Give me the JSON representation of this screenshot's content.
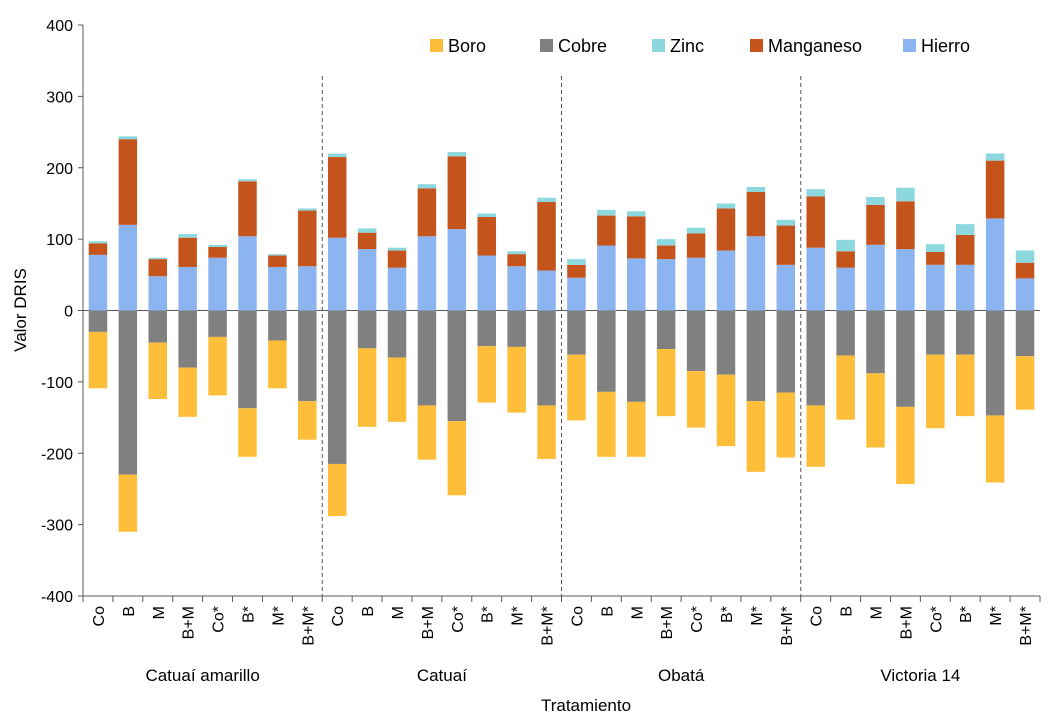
{
  "chart_data": {
    "type": "bar",
    "stacked": true,
    "xlabel": "Tratamiento",
    "ylabel": "Valor DRIS",
    "ylim": [
      -400,
      400
    ],
    "yticks": [
      -400,
      -300,
      -200,
      -100,
      0,
      100,
      200,
      300,
      400
    ],
    "grid": false,
    "legend_position": "top-right",
    "legend_order": [
      "Boro",
      "Cobre",
      "Zinc",
      "Manganeso",
      "Hierro"
    ],
    "groups": [
      "Catuaí amarillo",
      "Catuaí",
      "Obatá",
      "Victoria 14"
    ],
    "group_categories": [
      "Co",
      "B",
      "M",
      "B+M",
      "Co*",
      "B*",
      "M*",
      "B+M*"
    ],
    "categories": [
      "Co",
      "B",
      "M",
      "B+M",
      "Co*",
      "B*",
      "M*",
      "B+M*",
      "Co",
      "B",
      "M",
      "B+M",
      "Co*",
      "B*",
      "M*",
      "B+M*",
      "Co",
      "B",
      "M",
      "B+M",
      "Co*",
      "B*",
      "M*",
      "B+M*",
      "Co",
      "B",
      "M",
      "B+M",
      "Co*",
      "B*",
      "M*",
      "B+M*"
    ],
    "positive_series": [
      {
        "name": "Hierro",
        "color": "#8CB4F0",
        "values": [
          78,
          120,
          48,
          61,
          74,
          104,
          61,
          62,
          102,
          86,
          60,
          104,
          114,
          77,
          62,
          56,
          46,
          91,
          73,
          72,
          74,
          84,
          104,
          64,
          88,
          60,
          92,
          86,
          64,
          64,
          129,
          45
        ]
      },
      {
        "name": "Manganeso",
        "color": "#C5541C",
        "values": [
          16,
          120,
          24,
          41,
          15,
          77,
          16,
          78,
          113,
          23,
          24,
          67,
          102,
          54,
          17,
          96,
          18,
          42,
          59,
          19,
          34,
          59,
          62,
          55,
          72,
          23,
          56,
          67,
          18,
          42,
          81,
          22
        ]
      },
      {
        "name": "Zinc",
        "color": "#8DD8DE",
        "values": [
          3,
          4,
          2,
          5,
          3,
          3,
          2,
          3,
          5,
          6,
          4,
          6,
          6,
          5,
          4,
          6,
          8,
          8,
          7,
          9,
          8,
          7,
          7,
          8,
          10,
          16,
          11,
          19,
          11,
          15,
          10,
          17
        ]
      }
    ],
    "negative_series": [
      {
        "name": "Cobre",
        "color": "#808080",
        "values": [
          -30,
          -230,
          -45,
          -80,
          -37,
          -137,
          -42,
          -127,
          -215,
          -53,
          -66,
          -133,
          -155,
          -50,
          -51,
          -133,
          -62,
          -114,
          -128,
          -54,
          -85,
          -90,
          -127,
          -115,
          -133,
          -63,
          -88,
          -135,
          -62,
          -62,
          -147,
          -64
        ]
      },
      {
        "name": "Boro",
        "color": "#FEBE39",
        "values": [
          -79,
          -80,
          -79,
          -69,
          -82,
          -68,
          -67,
          -54,
          -73,
          -110,
          -90,
          -76,
          -104,
          -79,
          -92,
          -75,
          -92,
          -91,
          -77,
          -94,
          -79,
          -100,
          -99,
          -91,
          -86,
          -90,
          -104,
          -108,
          -103,
          -86,
          -94,
          -75
        ]
      }
    ]
  }
}
